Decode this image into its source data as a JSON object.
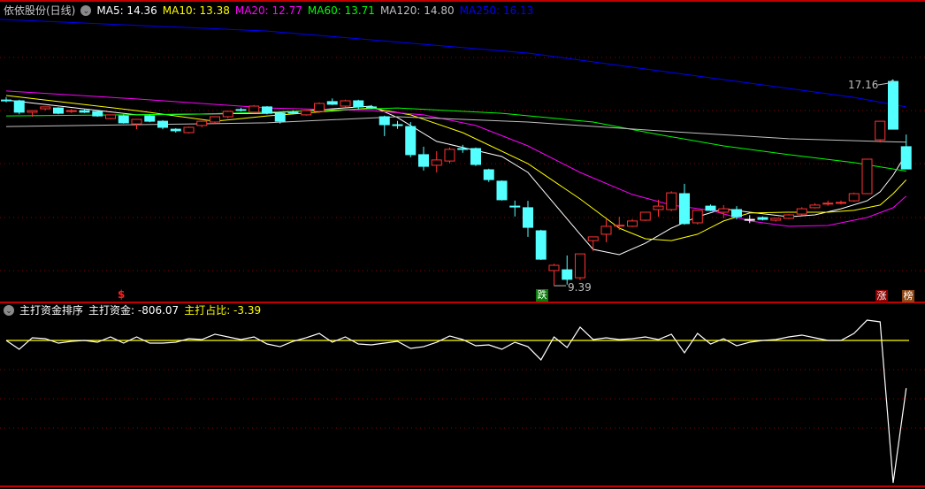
{
  "header": {
    "title": "依依股份(日线)",
    "ma": [
      {
        "label": "MA5: 14.36",
        "color": "#ffffff"
      },
      {
        "label": "MA10: 13.38",
        "color": "#ffff00"
      },
      {
        "label": "MA20: 12.77",
        "color": "#ff00ff"
      },
      {
        "label": "MA60: 13.71",
        "color": "#00ff00"
      },
      {
        "label": "MA120: 14.80",
        "color": "#c0c0c0"
      },
      {
        "label": "MA250: 16.13",
        "color": "#0000ff"
      }
    ]
  },
  "indicator": {
    "name": "主打资金排序",
    "value_label": "主打资金: -806.07",
    "ratio_label": "主打占比: -3.39"
  },
  "annotations": {
    "high_label": "17.16",
    "low_label": "9.39",
    "dollar_mark": "$",
    "fall_badge": "跌",
    "rise_badge": "涨",
    "rank_badge": "榜"
  },
  "colors": {
    "up": "#ff3232",
    "down": "#54ffff",
    "grid": "#8b0000",
    "border": "#c00000"
  },
  "chart_data": [
    {
      "type": "candlestick",
      "fields": [
        "open",
        "high",
        "low",
        "close"
      ],
      "high_marker": 17.16,
      "low_marker": 9.39,
      "candles": [
        [
          16.39,
          16.5,
          16.3,
          16.38
        ],
        [
          16.36,
          16.4,
          15.85,
          15.93
        ],
        [
          15.93,
          16.0,
          15.76,
          15.99
        ],
        [
          16.06,
          16.13,
          16.0,
          16.13
        ],
        [
          16.09,
          16.12,
          15.85,
          15.89
        ],
        [
          15.98,
          16.05,
          15.9,
          15.99
        ],
        [
          15.99,
          16.03,
          15.9,
          15.93
        ],
        [
          15.96,
          15.99,
          15.76,
          15.79
        ],
        [
          15.69,
          15.83,
          15.66,
          15.83
        ],
        [
          15.79,
          15.85,
          15.5,
          15.53
        ],
        [
          15.49,
          15.66,
          15.29,
          15.66
        ],
        [
          15.79,
          15.83,
          15.55,
          15.59
        ],
        [
          15.59,
          15.63,
          15.29,
          15.36
        ],
        [
          15.29,
          15.33,
          15.16,
          15.23
        ],
        [
          15.16,
          15.39,
          15.13,
          15.36
        ],
        [
          15.43,
          15.59,
          15.36,
          15.59
        ],
        [
          15.56,
          15.76,
          15.5,
          15.76
        ],
        [
          15.76,
          15.99,
          15.7,
          15.96
        ],
        [
          16.03,
          16.1,
          15.95,
          16.02
        ],
        [
          15.93,
          16.2,
          15.9,
          16.16
        ],
        [
          16.13,
          16.16,
          15.85,
          15.89
        ],
        [
          15.89,
          15.95,
          15.5,
          15.59
        ],
        [
          15.93,
          16.0,
          15.85,
          15.92
        ],
        [
          15.83,
          16.02,
          15.8,
          15.99
        ],
        [
          15.96,
          16.3,
          15.9,
          16.26
        ],
        [
          16.33,
          16.45,
          16.2,
          16.23
        ],
        [
          16.16,
          16.4,
          16.1,
          16.36
        ],
        [
          16.36,
          16.4,
          16.05,
          16.13
        ],
        [
          16.13,
          16.2,
          16.05,
          16.12
        ],
        [
          15.76,
          15.8,
          15.03,
          15.46
        ],
        [
          15.46,
          15.6,
          15.3,
          15.45
        ],
        [
          15.39,
          15.56,
          14.23,
          14.33
        ],
        [
          14.33,
          14.63,
          13.73,
          13.89
        ],
        [
          13.93,
          14.46,
          13.66,
          14.13
        ],
        [
          14.09,
          14.6,
          14.0,
          14.53
        ],
        [
          14.56,
          14.7,
          14.4,
          14.55
        ],
        [
          14.56,
          14.6,
          13.9,
          13.96
        ],
        [
          13.76,
          13.8,
          13.3,
          13.39
        ],
        [
          13.33,
          13.36,
          12.6,
          12.63
        ],
        [
          12.39,
          12.6,
          12.0,
          12.38
        ],
        [
          12.33,
          12.59,
          11.23,
          11.59
        ],
        [
          11.46,
          11.5,
          10.36,
          10.39
        ],
        [
          9.96,
          10.22,
          9.39,
          10.16
        ],
        [
          9.99,
          10.53,
          9.43,
          9.63
        ],
        [
          9.69,
          10.59,
          9.6,
          10.59
        ],
        [
          11.09,
          11.23,
          10.69,
          11.23
        ],
        [
          11.33,
          11.89,
          11.03,
          11.63
        ],
        [
          11.66,
          11.99,
          11.49,
          11.67
        ],
        [
          11.63,
          11.9,
          11.6,
          11.83
        ],
        [
          11.86,
          12.16,
          11.83,
          12.16
        ],
        [
          12.26,
          12.63,
          11.99,
          12.39
        ],
        [
          12.26,
          12.95,
          12.2,
          12.89
        ],
        [
          12.86,
          13.23,
          11.69,
          11.73
        ],
        [
          11.76,
          12.23,
          11.7,
          12.23
        ],
        [
          12.39,
          12.45,
          12.2,
          12.23
        ],
        [
          12.16,
          12.43,
          11.93,
          12.29
        ],
        [
          12.26,
          12.39,
          11.89,
          11.99
        ],
        [
          11.89,
          12.05,
          11.75,
          11.89
        ],
        [
          11.96,
          12.0,
          11.85,
          11.89
        ],
        [
          11.86,
          11.95,
          11.8,
          11.93
        ],
        [
          11.93,
          12.09,
          11.9,
          12.06
        ],
        [
          12.09,
          12.35,
          12.05,
          12.29
        ],
        [
          12.33,
          12.5,
          12.3,
          12.43
        ],
        [
          12.49,
          12.6,
          12.4,
          12.5
        ],
        [
          12.52,
          12.6,
          12.45,
          12.53
        ],
        [
          12.59,
          12.9,
          12.55,
          12.86
        ],
        [
          12.86,
          14.16,
          12.86,
          14.16
        ],
        [
          14.89,
          15.59,
          14.79,
          15.59
        ],
        [
          17.09,
          17.16,
          15.29,
          15.29
        ],
        [
          14.63,
          15.09,
          13.79,
          13.79
        ]
      ],
      "moving_averages": [
        {
          "name": "MA5",
          "color": "#ffffff",
          "points": [
            [
              0,
              16.39
            ],
            [
              10,
              15.83
            ],
            [
              20,
              15.89
            ],
            [
              28,
              16.16
            ],
            [
              30,
              15.73
            ],
            [
              33,
              14.83
            ],
            [
              36,
              14.49
            ],
            [
              38,
              14.26
            ],
            [
              40,
              13.66
            ],
            [
              42,
              12.49
            ],
            [
              44,
              11.33
            ],
            [
              45,
              10.76
            ],
            [
              47,
              10.56
            ],
            [
              49,
              10.99
            ],
            [
              51,
              11.56
            ],
            [
              53,
              11.99
            ],
            [
              55,
              12.29
            ],
            [
              57,
              12.16
            ],
            [
              60,
              11.99
            ],
            [
              62,
              12.06
            ],
            [
              64,
              12.29
            ],
            [
              66,
              12.59
            ],
            [
              67,
              12.93
            ],
            [
              68,
              13.56
            ],
            [
              69,
              14.36
            ]
          ]
        },
        {
          "name": "MA10",
          "color": "#ffff00",
          "points": [
            [
              0,
              16.56
            ],
            [
              10,
              15.99
            ],
            [
              16,
              15.59
            ],
            [
              20,
              15.79
            ],
            [
              28,
              16.09
            ],
            [
              31,
              15.83
            ],
            [
              35,
              15.16
            ],
            [
              40,
              13.99
            ],
            [
              44,
              12.66
            ],
            [
              47,
              11.56
            ],
            [
              49,
              11.16
            ],
            [
              51,
              11.09
            ],
            [
              53,
              11.33
            ],
            [
              55,
              11.83
            ],
            [
              57,
              12.13
            ],
            [
              60,
              12.16
            ],
            [
              63,
              12.16
            ],
            [
              65,
              12.23
            ],
            [
              67,
              12.43
            ],
            [
              68,
              12.86
            ],
            [
              69,
              13.38
            ]
          ]
        },
        {
          "name": "MA20",
          "color": "#ff00ff",
          "points": [
            [
              0,
              16.73
            ],
            [
              10,
              16.43
            ],
            [
              20,
              16.09
            ],
            [
              28,
              15.99
            ],
            [
              32,
              15.83
            ],
            [
              36,
              15.43
            ],
            [
              40,
              14.66
            ],
            [
              44,
              13.66
            ],
            [
              48,
              12.83
            ],
            [
              51,
              12.43
            ],
            [
              54,
              12.23
            ],
            [
              57,
              11.83
            ],
            [
              60,
              11.63
            ],
            [
              63,
              11.66
            ],
            [
              66,
              11.96
            ],
            [
              68,
              12.33
            ],
            [
              69,
              12.77
            ]
          ]
        },
        {
          "name": "MA60",
          "color": "#00ff00",
          "points": [
            [
              0,
              15.79
            ],
            [
              15,
              15.86
            ],
            [
              30,
              16.09
            ],
            [
              38,
              15.89
            ],
            [
              45,
              15.56
            ],
            [
              50,
              15.09
            ],
            [
              55,
              14.66
            ],
            [
              60,
              14.33
            ],
            [
              65,
              14.03
            ],
            [
              69,
              13.71
            ]
          ]
        },
        {
          "name": "MA120",
          "color": "#c0c0c0",
          "points": [
            [
              0,
              15.39
            ],
            [
              10,
              15.46
            ],
            [
              20,
              15.53
            ],
            [
              30,
              15.76
            ],
            [
              40,
              15.56
            ],
            [
              50,
              15.23
            ],
            [
              60,
              14.93
            ],
            [
              69,
              14.8
            ]
          ]
        },
        {
          "name": "MA250",
          "color": "#0000ff",
          "points": [
            [
              -0.5,
              19.43
            ],
            [
              20,
              18.99
            ],
            [
              40,
              18.16
            ],
            [
              55,
              17.16
            ],
            [
              65,
              16.49
            ],
            [
              69,
              16.13
            ]
          ]
        }
      ]
    },
    {
      "type": "line",
      "series": [
        {
          "name": "主打资金",
          "color": "#ffffff",
          "values": [
            0,
            -149,
            45,
            30,
            -45,
            -15,
            0,
            -30,
            60,
            -45,
            60,
            -45,
            -45,
            -30,
            30,
            15,
            105,
            60,
            15,
            60,
            -60,
            -105,
            -15,
            45,
            119,
            -30,
            60,
            -60,
            -75,
            -45,
            -15,
            -134,
            -105,
            -30,
            75,
            15,
            -90,
            -75,
            -149,
            -30,
            -105,
            -328,
            60,
            -119,
            224,
            15,
            45,
            15,
            30,
            60,
            15,
            105,
            -209,
            119,
            -60,
            30,
            -90,
            -30,
            0,
            15,
            60,
            90,
            45,
            0,
            0,
            119,
            343,
            314,
            -2404,
            -806.07
          ]
        },
        {
          "name": "主打占比",
          "color": "#ffff00",
          "last": -3.39
        }
      ]
    }
  ]
}
